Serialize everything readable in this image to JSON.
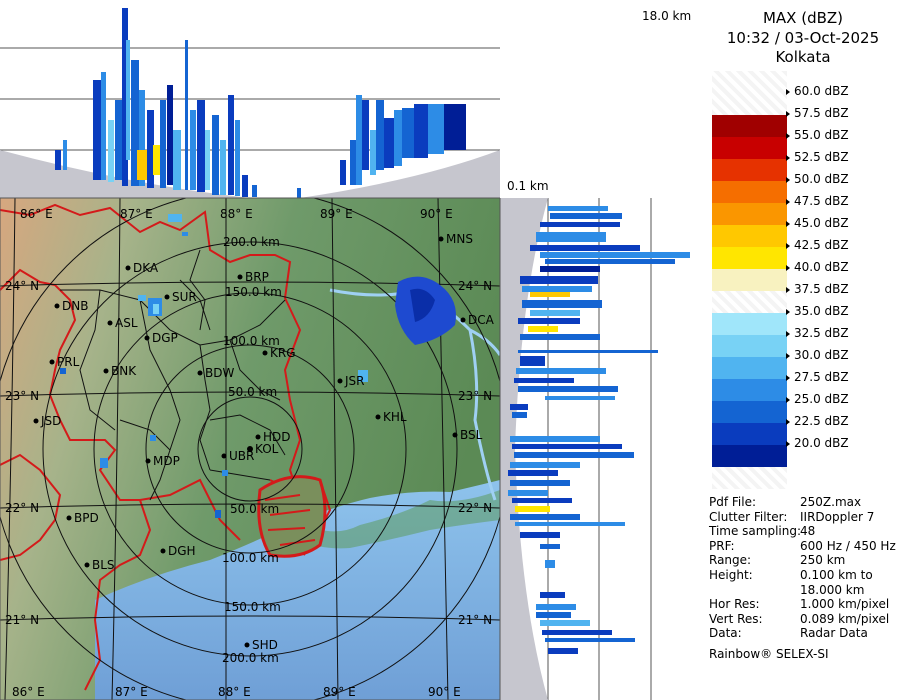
{
  "header": {
    "product": "MAX (dBZ)",
    "datetime": "10:32 / 03-Oct-2025",
    "station": "Kolkata"
  },
  "side_labels": {
    "top_height": "18.0 km",
    "bottom_height": "0.1 km"
  },
  "legend": [
    {
      "label": "60.0 dBZ",
      "color": "#ffffff"
    },
    {
      "label": "57.5 dBZ",
      "color": "#a00000"
    },
    {
      "label": "55.0 dBZ",
      "color": "#c80000"
    },
    {
      "label": "52.5 dBZ",
      "color": "#e63200"
    },
    {
      "label": "50.0 dBZ",
      "color": "#f56e00"
    },
    {
      "label": "47.5 dBZ",
      "color": "#fa9600"
    },
    {
      "label": "45.0 dBZ",
      "color": "#ffc800"
    },
    {
      "label": "42.5 dBZ",
      "color": "#ffe600"
    },
    {
      "label": "40.0 dBZ",
      "color": "#f8f2c0"
    },
    {
      "label": "37.5 dBZ",
      "color": "#ffffff"
    },
    {
      "label": "35.0 dBZ",
      "color": "#a0e6fa"
    },
    {
      "label": "32.5 dBZ",
      "color": "#78d2f5"
    },
    {
      "label": "30.0 dBZ",
      "color": "#50b4f0"
    },
    {
      "label": "27.5 dBZ",
      "color": "#2d8ce6"
    },
    {
      "label": "25.0 dBZ",
      "color": "#1464d2"
    },
    {
      "label": "22.5 dBZ",
      "color": "#0a3cbe"
    },
    {
      "label": "20.0 dBZ",
      "color": "#001e96"
    }
  ],
  "info": [
    {
      "key": "Pdf File:",
      "value": "250Z.max"
    },
    {
      "key": "Clutter Filter:",
      "value": "IIRDoppler 7"
    },
    {
      "key": "Time sampling:",
      "value": "48"
    },
    {
      "key": "PRF:",
      "value": "600 Hz / 450 Hz"
    },
    {
      "key": "Range:",
      "value": "250 km"
    },
    {
      "key": "Height:",
      "value": "0.100 km to"
    },
    {
      "key": "",
      "value": "18.000 km"
    },
    {
      "key": "Hor Res:",
      "value": "1.000 km/pixel"
    },
    {
      "key": "Vert Res:",
      "value": "0.089 km/pixel"
    },
    {
      "key": "Data:",
      "value": "Radar Data"
    }
  ],
  "footer": "Rainbow® SELEX-SI",
  "map": {
    "lon_labels": [
      "86° E",
      "87° E",
      "88° E",
      "89° E",
      "90° E"
    ],
    "lat_labels": [
      "24° N",
      "23° N",
      "22° N",
      "21° N"
    ],
    "range_rings": [
      "50.0 km",
      "100.0 km",
      "150.0 km",
      "200.0 km"
    ],
    "places": [
      {
        "name": "MNS"
      },
      {
        "name": "DKA"
      },
      {
        "name": "BRP"
      },
      {
        "name": "SUR"
      },
      {
        "name": "DNB"
      },
      {
        "name": "ASL"
      },
      {
        "name": "DGP"
      },
      {
        "name": "DCA"
      },
      {
        "name": "KRG"
      },
      {
        "name": "PRL"
      },
      {
        "name": "BNK"
      },
      {
        "name": "BDW"
      },
      {
        "name": "JSR"
      },
      {
        "name": "KHL"
      },
      {
        "name": "JSD"
      },
      {
        "name": "BSL"
      },
      {
        "name": "MDP"
      },
      {
        "name": "HDD"
      },
      {
        "name": "UBR"
      },
      {
        "name": "KOL"
      },
      {
        "name": "BPD"
      },
      {
        "name": "DGH"
      },
      {
        "name": "BLS"
      },
      {
        "name": "SHD"
      }
    ]
  }
}
